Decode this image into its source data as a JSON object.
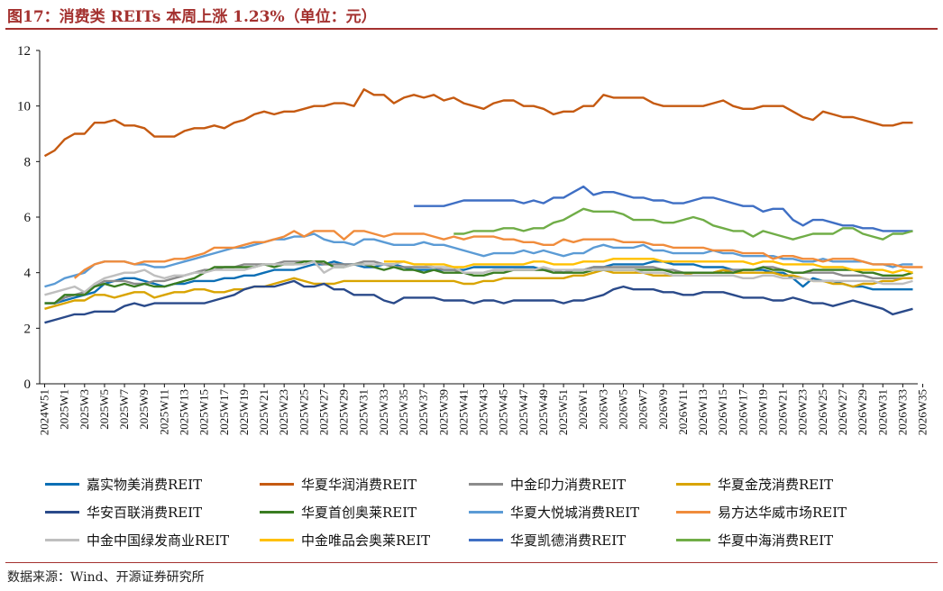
{
  "title": "图17：消费类 REITs 本周上涨 1.23%（单位：元）",
  "source": "数据来源：Wind、开源证券研究所",
  "chart_data": {
    "type": "line",
    "ylim": [
      0,
      12
    ],
    "yticks": [
      0,
      2,
      4,
      6,
      8,
      10,
      12
    ],
    "xlabel": "",
    "ylabel": "",
    "grid": false,
    "legend_position": "bottom",
    "x_labels": [
      "2024W51",
      "2025W1",
      "2025W3",
      "2025W5",
      "2025W7",
      "2025W9",
      "2025W11",
      "2025W13",
      "2025W15",
      "2025W17",
      "2025W19",
      "2025W21",
      "2025W23",
      "2025W25",
      "2025W27",
      "2025W29",
      "2025W31",
      "2025W33",
      "2025W35",
      "2025W37",
      "2025W39",
      "2025W41",
      "2025W43",
      "2025W45",
      "2025W47",
      "2025W49",
      "2025W51",
      "2026W1",
      "2026W3",
      "2026W5",
      "2026W7",
      "2026W9",
      "2026W11",
      "2026W13",
      "2026W15",
      "2026W17",
      "2026W19",
      "2026W21",
      "2026W23",
      "2026W25",
      "2026W27",
      "2026W29",
      "2026W31",
      "2026W33",
      "2026W35"
    ],
    "x_label_step": 2,
    "n_points": 88,
    "series": [
      {
        "name": "嘉实物美消费REIT",
        "color": "#0c6fb5",
        "start": 0,
        "values": [
          2.9,
          2.9,
          3.0,
          3.1,
          3.2,
          3.3,
          3.6,
          3.7,
          3.8,
          3.8,
          3.7,
          3.6,
          3.5,
          3.6,
          3.6,
          3.7,
          3.7,
          3.7,
          3.8,
          3.8,
          3.9,
          3.9,
          4.0,
          4.1,
          4.1,
          4.1,
          4.2,
          4.3,
          4.3,
          4.4,
          4.3,
          4.3,
          4.2,
          4.2,
          4.3,
          4.3,
          4.2,
          4.1,
          4.1,
          4.1,
          4.1,
          4.1,
          4.1,
          4.2,
          4.2,
          4.2,
          4.2,
          4.2,
          4.2,
          4.2,
          4.1,
          4.1,
          4.0,
          4.1,
          4.1,
          4.2,
          4.2,
          4.3,
          4.3,
          4.3,
          4.3,
          4.4,
          4.4,
          4.3,
          4.3,
          4.3,
          4.2,
          4.2,
          4.2,
          4.1,
          4.1,
          4.1,
          4.1,
          4.0,
          4.0,
          3.8,
          3.5,
          3.8,
          3.7,
          3.7,
          3.6,
          3.5,
          3.5,
          3.4,
          3.4,
          3.4,
          3.4,
          3.4
        ]
      },
      {
        "name": "华夏华润消费REIT",
        "color": "#c55a11",
        "start": 0,
        "values": [
          8.2,
          8.4,
          8.8,
          9.0,
          9.0,
          9.4,
          9.4,
          9.5,
          9.3,
          9.3,
          9.2,
          8.9,
          8.9,
          8.9,
          9.1,
          9.2,
          9.2,
          9.3,
          9.2,
          9.4,
          9.5,
          9.7,
          9.8,
          9.7,
          9.8,
          9.8,
          9.9,
          10.0,
          10.0,
          10.1,
          10.1,
          10.0,
          10.6,
          10.4,
          10.4,
          10.1,
          10.3,
          10.4,
          10.3,
          10.4,
          10.2,
          10.3,
          10.1,
          10.0,
          9.9,
          10.1,
          10.2,
          10.2,
          10.0,
          10.0,
          9.9,
          9.7,
          9.8,
          9.8,
          10.0,
          10.0,
          10.4,
          10.3,
          10.3,
          10.3,
          10.3,
          10.1,
          10.0,
          10.0,
          10.0,
          10.0,
          10.0,
          10.1,
          10.2,
          10.0,
          9.9,
          9.9,
          10.0,
          10.0,
          10.0,
          9.8,
          9.6,
          9.5,
          9.8,
          9.7,
          9.6,
          9.6,
          9.5,
          9.4,
          9.3,
          9.3,
          9.4,
          9.4
        ]
      },
      {
        "name": "中金印力消费REIT",
        "color": "#8c8c8c",
        "start": 0,
        "values": [
          2.9,
          2.9,
          3.1,
          3.2,
          3.3,
          3.5,
          3.7,
          3.7,
          3.7,
          3.6,
          3.6,
          3.7,
          3.7,
          3.8,
          3.9,
          4.0,
          4.1,
          4.1,
          4.2,
          4.2,
          4.3,
          4.3,
          4.3,
          4.3,
          4.4,
          4.4,
          4.4,
          4.4,
          4.3,
          4.3,
          4.3,
          4.3,
          4.4,
          4.4,
          4.3,
          4.2,
          4.2,
          4.2,
          4.2,
          4.2,
          4.1,
          4.1,
          4.0,
          4.0,
          4.0,
          4.1,
          4.1,
          4.1,
          4.1,
          4.1,
          4.1,
          4.1,
          4.0,
          4.1,
          4.1,
          4.2,
          4.2,
          4.2,
          4.2,
          4.2,
          4.2,
          4.2,
          4.1,
          4.1,
          4.0,
          4.0,
          4.0,
          4.0,
          4.1,
          4.1,
          4.1,
          4.1,
          4.2,
          4.2,
          4.1,
          4.0,
          4.0,
          4.0,
          4.0,
          4.0,
          3.9,
          3.9,
          3.9,
          3.8,
          3.8,
          3.8,
          3.8,
          3.8
        ]
      },
      {
        "name": "华夏金茂消费REIT",
        "color": "#d9a400",
        "start": 0,
        "values": [
          2.7,
          2.8,
          2.9,
          3.0,
          3.0,
          3.2,
          3.2,
          3.1,
          3.2,
          3.3,
          3.3,
          3.1,
          3.2,
          3.3,
          3.3,
          3.4,
          3.4,
          3.3,
          3.3,
          3.4,
          3.4,
          3.5,
          3.5,
          3.6,
          3.7,
          3.8,
          3.7,
          3.6,
          3.6,
          3.6,
          3.7,
          3.7,
          3.7,
          3.7,
          3.7,
          3.7,
          3.7,
          3.7,
          3.7,
          3.7,
          3.7,
          3.7,
          3.6,
          3.6,
          3.7,
          3.7,
          3.8,
          3.8,
          3.8,
          3.8,
          3.8,
          3.8,
          3.8,
          3.9,
          3.9,
          4.0,
          4.1,
          4.0,
          4.0,
          4.0,
          4.0,
          3.9,
          3.9,
          3.9,
          3.9,
          4.0,
          4.0,
          4.0,
          4.1,
          4.0,
          4.0,
          4.0,
          4.0,
          4.0,
          3.9,
          3.9,
          3.8,
          3.7,
          3.7,
          3.6,
          3.6,
          3.5,
          3.6,
          3.6,
          3.7,
          3.7,
          3.8,
          3.8
        ]
      },
      {
        "name": "华安百联消费REIT",
        "color": "#2a4a8a",
        "start": 0,
        "values": [
          2.2,
          2.3,
          2.4,
          2.5,
          2.5,
          2.6,
          2.6,
          2.6,
          2.8,
          2.9,
          2.8,
          2.9,
          2.9,
          2.9,
          2.9,
          2.9,
          2.9,
          3.0,
          3.1,
          3.2,
          3.4,
          3.5,
          3.5,
          3.5,
          3.6,
          3.7,
          3.5,
          3.5,
          3.6,
          3.4,
          3.4,
          3.2,
          3.2,
          3.2,
          3.0,
          2.9,
          3.1,
          3.1,
          3.1,
          3.1,
          3.0,
          3.0,
          3.0,
          2.9,
          3.0,
          3.0,
          2.9,
          3.0,
          3.0,
          3.0,
          3.0,
          3.0,
          2.9,
          3.0,
          3.0,
          3.1,
          3.2,
          3.4,
          3.5,
          3.4,
          3.4,
          3.4,
          3.3,
          3.3,
          3.2,
          3.2,
          3.3,
          3.3,
          3.3,
          3.2,
          3.1,
          3.1,
          3.1,
          3.0,
          3.0,
          3.1,
          3.0,
          2.9,
          2.9,
          2.8,
          2.9,
          3.0,
          2.9,
          2.8,
          2.7,
          2.5,
          2.6,
          2.7
        ]
      },
      {
        "name": "华夏首创奥莱REIT",
        "color": "#3a7d22",
        "start": 0,
        "values": [
          2.9,
          2.9,
          3.2,
          3.2,
          3.2,
          3.5,
          3.6,
          3.5,
          3.6,
          3.5,
          3.6,
          3.5,
          3.5,
          3.6,
          3.7,
          3.8,
          4.0,
          4.2,
          4.2,
          4.2,
          4.2,
          4.2,
          4.3,
          4.2,
          4.3,
          4.3,
          4.4,
          4.4,
          4.4,
          4.2,
          4.2,
          4.3,
          4.3,
          4.2,
          4.1,
          4.2,
          4.1,
          4.1,
          4.0,
          4.1,
          4.0,
          4.0,
          4.0,
          3.9,
          3.9,
          4.0,
          4.0,
          4.1,
          4.1,
          4.1,
          4.1,
          4.0,
          4.0,
          4.0,
          4.0,
          4.1,
          4.1,
          4.1,
          4.1,
          4.1,
          4.1,
          4.1,
          4.1,
          4.0,
          4.0,
          4.0,
          4.0,
          4.0,
          4.0,
          4.0,
          4.1,
          4.1,
          4.2,
          4.1,
          4.1,
          4.0,
          4.0,
          4.1,
          4.1,
          4.1,
          4.1,
          4.1,
          4.0,
          4.0,
          3.9,
          3.9,
          3.9,
          4.0
        ]
      },
      {
        "name": "华夏大悦城消费REIT",
        "color": "#5b9bd5",
        "start": 0,
        "values": [
          3.5,
          3.6,
          3.8,
          3.9,
          4.0,
          4.3,
          4.4,
          4.4,
          4.4,
          4.3,
          4.3,
          4.2,
          4.2,
          4.3,
          4.4,
          4.5,
          4.6,
          4.7,
          4.8,
          4.9,
          4.9,
          5.0,
          5.1,
          5.2,
          5.2,
          5.3,
          5.3,
          5.4,
          5.2,
          5.1,
          5.1,
          5.0,
          5.2,
          5.2,
          5.1,
          5.0,
          5.0,
          5.0,
          5.1,
          5.0,
          5.0,
          4.9,
          4.8,
          4.7,
          4.6,
          4.7,
          4.7,
          4.7,
          4.8,
          4.7,
          4.8,
          4.7,
          4.6,
          4.7,
          4.7,
          4.9,
          5.0,
          4.9,
          4.9,
          4.9,
          5.0,
          4.8,
          4.8,
          4.7,
          4.7,
          4.7,
          4.7,
          4.8,
          4.7,
          4.7,
          4.6,
          4.6,
          4.6,
          4.6,
          4.5,
          4.5,
          4.4,
          4.4,
          4.5,
          4.4,
          4.4,
          4.4,
          4.4,
          4.3,
          4.3,
          4.2,
          4.3,
          4.3
        ]
      },
      {
        "name": "易方达华威市场REIT",
        "color": "#f08c3c",
        "start": 3,
        "values": [
          3.8,
          4.1,
          4.3,
          4.4,
          4.4,
          4.4,
          4.3,
          4.4,
          4.4,
          4.4,
          4.5,
          4.5,
          4.6,
          4.7,
          4.9,
          4.9,
          4.9,
          5.0,
          5.1,
          5.1,
          5.2,
          5.3,
          5.5,
          5.3,
          5.5,
          5.5,
          5.5,
          5.2,
          5.5,
          5.5,
          5.4,
          5.3,
          5.4,
          5.4,
          5.4,
          5.4,
          5.3,
          5.2,
          5.3,
          5.2,
          5.3,
          5.3,
          5.3,
          5.2,
          5.2,
          5.1,
          5.1,
          5.0,
          5.0,
          5.2,
          5.1,
          5.2,
          5.2,
          5.2,
          5.2,
          5.1,
          5.1,
          5.1,
          5.0,
          5.0,
          4.9,
          4.9,
          4.9,
          4.9,
          4.8,
          4.8,
          4.8,
          4.7,
          4.7,
          4.7,
          4.5,
          4.6,
          4.6,
          4.5,
          4.5,
          4.4,
          4.5,
          4.5,
          4.5,
          4.4,
          4.3,
          4.3,
          4.3,
          4.2,
          4.2,
          4.2
        ]
      },
      {
        "name": "中金中国绿发商业REIT",
        "color": "#bfbfbf",
        "start": 0,
        "values": [
          3.2,
          3.3,
          3.4,
          3.5,
          3.3,
          3.6,
          3.8,
          3.9,
          4.0,
          4.0,
          4.1,
          3.9,
          3.8,
          3.9,
          3.9,
          4.0,
          4.0,
          4.1,
          4.1,
          4.1,
          4.1,
          4.2,
          4.3,
          4.3,
          4.3,
          4.3,
          4.3,
          4.4,
          4.0,
          4.2,
          4.2,
          4.3,
          4.3,
          4.3,
          4.3,
          4.3,
          4.4,
          4.3,
          4.3,
          4.2,
          4.2,
          4.2,
          4.0,
          4.0,
          4.0,
          4.1,
          4.1,
          4.1,
          4.1,
          4.1,
          4.2,
          4.1,
          4.1,
          4.1,
          4.1,
          4.1,
          4.1,
          4.1,
          4.1,
          4.1,
          4.0,
          4.0,
          4.0,
          3.9,
          3.9,
          3.9,
          3.9,
          3.9,
          3.9,
          3.9,
          3.8,
          3.8,
          3.9,
          3.9,
          3.8,
          3.8,
          3.8,
          3.7,
          3.7,
          3.7,
          3.7,
          3.7,
          3.7,
          3.7,
          3.6,
          3.6,
          3.6,
          3.7
        ]
      },
      {
        "name": "中金唯品会奥莱REIT",
        "color": "#ffc000",
        "start": 34,
        "values": [
          4.4,
          4.4,
          4.4,
          4.3,
          4.3,
          4.3,
          4.3,
          4.2,
          4.2,
          4.3,
          4.3,
          4.3,
          4.3,
          4.3,
          4.3,
          4.4,
          4.4,
          4.3,
          4.3,
          4.3,
          4.4,
          4.4,
          4.4,
          4.5,
          4.5,
          4.5,
          4.5,
          4.5,
          4.4,
          4.4,
          4.4,
          4.4,
          4.4,
          4.4,
          4.4,
          4.4,
          4.4,
          4.3,
          4.4,
          4.4,
          4.3,
          4.3,
          4.3,
          4.3,
          4.2,
          4.2,
          4.2,
          4.1,
          4.1,
          4.1,
          4.1,
          4.0,
          4.1,
          4.0
        ]
      },
      {
        "name": "华夏凯德消费REIT",
        "color": "#3f6fc4",
        "start": 37,
        "values": [
          6.4,
          6.4,
          6.4,
          6.4,
          6.5,
          6.6,
          6.6,
          6.6,
          6.6,
          6.6,
          6.6,
          6.5,
          6.6,
          6.5,
          6.7,
          6.7,
          6.9,
          7.1,
          6.8,
          6.9,
          6.9,
          6.8,
          6.7,
          6.7,
          6.6,
          6.6,
          6.5,
          6.5,
          6.6,
          6.7,
          6.7,
          6.6,
          6.5,
          6.4,
          6.4,
          6.2,
          6.3,
          6.3,
          5.9,
          5.7,
          5.9,
          5.9,
          5.8,
          5.7,
          5.7,
          5.6,
          5.6,
          5.5,
          5.5,
          5.5,
          5.5
        ]
      },
      {
        "name": "华夏中海消费REIT",
        "color": "#70ad47",
        "start": 41,
        "values": [
          5.4,
          5.4,
          5.5,
          5.5,
          5.5,
          5.6,
          5.6,
          5.5,
          5.6,
          5.6,
          5.8,
          5.9,
          6.1,
          6.3,
          6.2,
          6.2,
          6.2,
          6.1,
          5.9,
          5.9,
          5.9,
          5.8,
          5.8,
          5.9,
          6.0,
          5.9,
          5.7,
          5.6,
          5.5,
          5.5,
          5.3,
          5.5,
          5.4,
          5.3,
          5.2,
          5.3,
          5.4,
          5.4,
          5.4,
          5.6,
          5.6,
          5.4,
          5.3,
          5.2,
          5.4,
          5.4,
          5.5
        ]
      }
    ]
  }
}
